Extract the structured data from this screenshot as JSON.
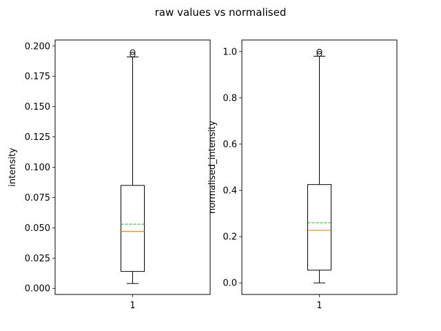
{
  "suptitle": "raw values vs normalised",
  "chart_data": [
    {
      "type": "box",
      "categories": [
        "1"
      ],
      "xlabel": "",
      "ylabel": "intensity",
      "ylim": [
        -0.005,
        0.205
      ],
      "yticks": [
        0.0,
        0.025,
        0.05,
        0.075,
        0.1,
        0.125,
        0.15,
        0.175,
        0.2
      ],
      "ytick_labels": [
        "0.000",
        "0.025",
        "0.050",
        "0.075",
        "0.100",
        "0.125",
        "0.150",
        "0.175",
        "0.200"
      ],
      "boxes": [
        {
          "whisker_low": 0.004,
          "q1": 0.014,
          "median": 0.047,
          "mean": 0.053,
          "q3": 0.085,
          "whisker_high": 0.191,
          "outliers": [
            0.193,
            0.195
          ]
        }
      ]
    },
    {
      "type": "box",
      "categories": [
        "1"
      ],
      "xlabel": "",
      "ylabel": "normalised_intensity",
      "ylim": [
        -0.05,
        1.05
      ],
      "yticks": [
        0.0,
        0.2,
        0.4,
        0.6,
        0.8,
        1.0
      ],
      "ytick_labels": [
        "0.0",
        "0.2",
        "0.4",
        "0.6",
        "0.8",
        "1.0"
      ],
      "boxes": [
        {
          "whisker_low": 0.0,
          "q1": 0.055,
          "median": 0.227,
          "mean": 0.26,
          "q3": 0.425,
          "whisker_high": 0.98,
          "outliers": [
            0.99,
            1.0
          ]
        }
      ]
    }
  ],
  "colors": {
    "median": "#ff7f0e",
    "mean": "#2ca02c",
    "frame": "#000000"
  }
}
